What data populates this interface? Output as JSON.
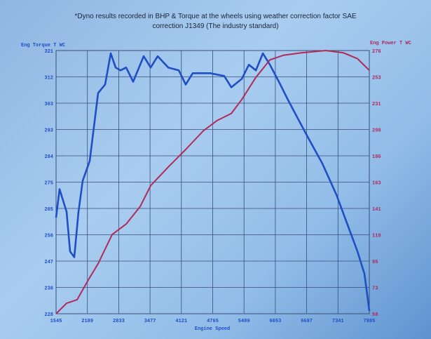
{
  "chart_data": {
    "type": "line",
    "title": "*Dyno results recorded in BHP & Torque at the wheels using weather correction factor SAE",
    "subtitle": "correction J1349 (The industry standard)",
    "xlabel": "Engine Speed",
    "ylabel_left": "Eng Torque T WC",
    "ylabel_right": "Eng Power T WC",
    "xlim": [
      1545,
      7985
    ],
    "ylim_left": [
      228,
      321
    ],
    "ylim_right": [
      50,
      276
    ],
    "x_ticks": [
      "1545",
      "2189",
      "2833",
      "3477",
      "4121",
      "4765",
      "5409",
      "6053",
      "6697",
      "7341",
      "7985"
    ],
    "y_ticks_left": [
      "321",
      "312",
      "303",
      "293",
      "284",
      "275",
      "265",
      "256",
      "247",
      "238",
      "228"
    ],
    "y_ticks_right": [
      "276",
      "253",
      "231",
      "208",
      "186",
      "163",
      "141",
      "118",
      "95",
      "73",
      "50"
    ],
    "grid": true,
    "series": [
      {
        "name": "Eng Torque T WC",
        "axis": "left",
        "color": "#1f4fc4",
        "x": [
          1545,
          1617,
          1761,
          1833,
          1920,
          2006,
          2093,
          2237,
          2410,
          2554,
          2669,
          2770,
          2871,
          2986,
          3130,
          3346,
          3490,
          3634,
          3851,
          4067,
          4211,
          4355,
          4715,
          5003,
          5148,
          5364,
          5508,
          5652,
          5796,
          5940,
          6156,
          6300,
          6516,
          6733,
          7021,
          7309,
          7525,
          7741,
          7885,
          7985
        ],
        "y": [
          262,
          272,
          264,
          250,
          248,
          264,
          275,
          282,
          306,
          309,
          320,
          315,
          314,
          315,
          310,
          319,
          315,
          319,
          315,
          314,
          309,
          313,
          313,
          312,
          308,
          311,
          316,
          314,
          320,
          316,
          309,
          304,
          297,
          290,
          281,
          270,
          260,
          250,
          242,
          229
        ]
      },
      {
        "name": "Eng Power T WC",
        "axis": "right",
        "color": "#b02a5a",
        "x": [
          1545,
          1761,
          1977,
          2193,
          2410,
          2698,
          2986,
          3274,
          3490,
          3851,
          4211,
          4571,
          4859,
          5148,
          5364,
          5652,
          5940,
          6228,
          6588,
          7093,
          7453,
          7741,
          7985
        ],
        "y": [
          50,
          59,
          62,
          78,
          93,
          118,
          127,
          142,
          160,
          176,
          191,
          207,
          216,
          222,
          234,
          253,
          268,
          272,
          274,
          276,
          274,
          269,
          259
        ]
      }
    ]
  }
}
